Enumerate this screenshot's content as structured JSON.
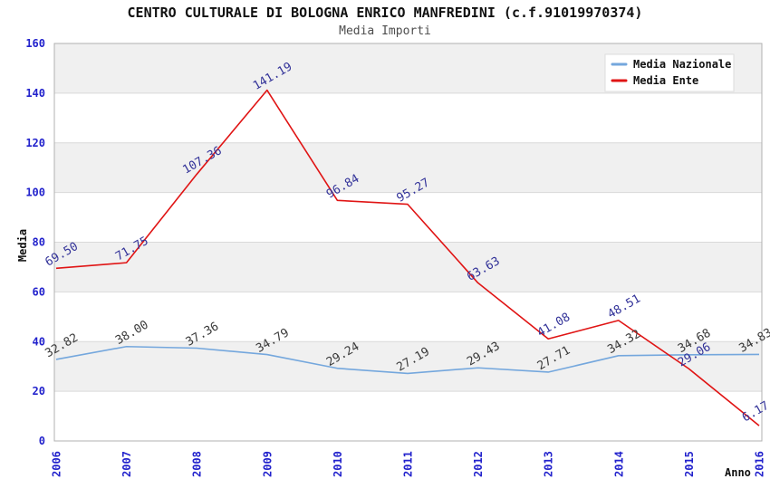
{
  "title": "CENTRO CULTURALE DI BOLOGNA ENRICO MANFREDINI (c.f.91019970374)",
  "subtitle": "Media Importi",
  "style": {
    "tick_color": "#2222cc",
    "grid_color": "#d9d9d9",
    "band_color": "#f0f0f0",
    "plot_border_color": "#b0b0b0",
    "legend_border_color": "#dddddd",
    "legend_bg": "#ffffff",
    "title_color": "#111111",
    "subtitle_color": "#4d4d4d"
  },
  "chart_data": {
    "type": "line",
    "title": "CENTRO CULTURALE DI BOLOGNA ENRICO MANFREDINI (c.f.91019970374)",
    "subtitle": "Media Importi",
    "xlabel": "Anno",
    "ylabel": "Media",
    "x": [
      "2006",
      "2007",
      "2008",
      "2009",
      "2010",
      "2011",
      "2012",
      "2013",
      "2014",
      "2015",
      "2016"
    ],
    "series": [
      {
        "name": "Media Nazionale",
        "color": "#74a7dd",
        "label_color": "#3a3a3a",
        "values": [
          32.82,
          38.0,
          37.36,
          34.79,
          29.24,
          27.19,
          29.43,
          27.71,
          34.32,
          34.68,
          34.83
        ],
        "labels": [
          "32.82",
          "38.00",
          "37.36",
          "34.79",
          "29.24",
          "27.19",
          "29.43",
          "27.71",
          "34.32",
          "34.68",
          "34.83"
        ]
      },
      {
        "name": "Media Ente",
        "color": "#e01414",
        "label_color": "#333399",
        "values": [
          69.5,
          71.75,
          107.36,
          141.19,
          96.84,
          95.27,
          63.63,
          41.08,
          48.51,
          29.06,
          6.17
        ],
        "labels": [
          "69.50",
          "71.75",
          "107.36",
          "141.19",
          "96.84",
          "95.27",
          "63.63",
          "41.08",
          "48.51",
          "29.06",
          "6.17"
        ]
      }
    ],
    "ylim": [
      0,
      160
    ],
    "ytick_step": 20,
    "yticks": [
      0,
      20,
      40,
      60,
      80,
      100,
      120,
      140,
      160
    ],
    "grid": "horizontal alternating bands",
    "legend_position": "top-right",
    "data_label_rotation_deg": -30,
    "x_tick_rotation_deg": -90
  }
}
